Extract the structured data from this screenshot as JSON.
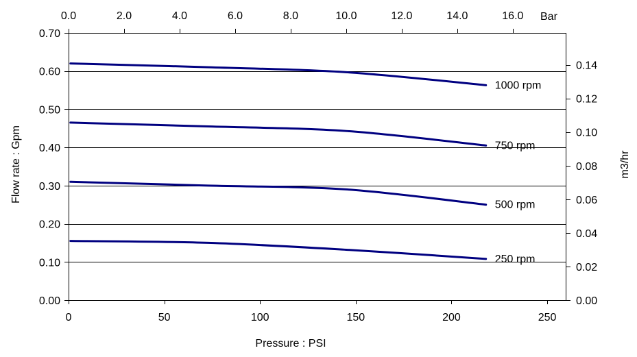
{
  "chart_data": {
    "type": "line",
    "xlabel": "Pressure : PSI",
    "ylabel": "Flow rate : Gpm",
    "y2label": "m3/hr",
    "x2unit": "Bar",
    "xlim": [
      0,
      260
    ],
    "ylim": [
      0,
      0.7
    ],
    "x2lim": [
      0,
      17.93
    ],
    "y2lim": [
      0,
      0.159
    ],
    "xticks": [
      "0",
      "50",
      "100",
      "150",
      "200",
      "250"
    ],
    "xtick_values": [
      0,
      50,
      100,
      150,
      200,
      250
    ],
    "yticks": [
      "0.00",
      "0.10",
      "0.20",
      "0.30",
      "0.40",
      "0.50",
      "0.60",
      "0.70"
    ],
    "ytick_values": [
      0,
      0.1,
      0.2,
      0.3,
      0.4,
      0.5,
      0.6,
      0.7
    ],
    "x2ticks": [
      "0.0",
      "2.0",
      "4.0",
      "6.0",
      "8.0",
      "10.0",
      "12.0",
      "14.0",
      "16.0"
    ],
    "x2tick_values": [
      0,
      2,
      4,
      6,
      8,
      10,
      12,
      14,
      16
    ],
    "y2ticks": [
      "0.00",
      "0.02",
      "0.04",
      "0.06",
      "0.08",
      "0.10",
      "0.12",
      "0.14"
    ],
    "y2tick_values": [
      0,
      0.02,
      0.04,
      0.06,
      0.08,
      0.1,
      0.12,
      0.14
    ],
    "grid": "horizontal",
    "line_color": "#000080",
    "series": [
      {
        "name": "1000 rpm",
        "x": [
          1,
          73,
          145,
          218
        ],
        "y": [
          0.62,
          0.61,
          0.597,
          0.563
        ]
      },
      {
        "name": "750 rpm",
        "x": [
          1,
          73,
          145,
          218
        ],
        "y": [
          0.465,
          0.455,
          0.443,
          0.405
        ]
      },
      {
        "name": "500 rpm",
        "x": [
          1,
          73,
          145,
          218
        ],
        "y": [
          0.31,
          0.3,
          0.29,
          0.25
        ]
      },
      {
        "name": "250 rpm",
        "x": [
          1,
          73,
          145,
          218
        ],
        "y": [
          0.155,
          0.15,
          0.132,
          0.108
        ]
      }
    ]
  }
}
